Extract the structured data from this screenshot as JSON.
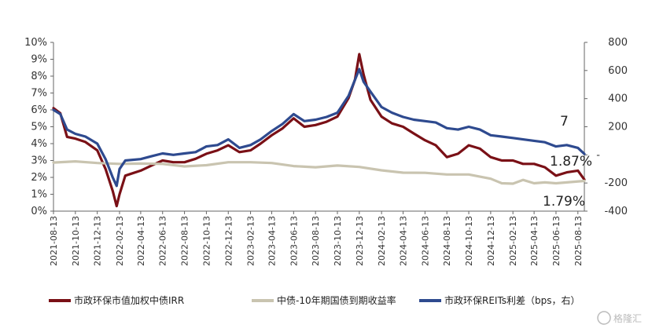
{
  "chart_data": {
    "type": "line",
    "title": "",
    "xlabel": "",
    "ylabel_left": "",
    "ylabel_right": "",
    "x_start": "2021-08-13",
    "x_end": "2025-08-31",
    "ylim_left": [
      0,
      10
    ],
    "ylim_right": [
      -400,
      800
    ],
    "y_ticks_left": [
      "0%",
      "1%",
      "2%",
      "3%",
      "4%",
      "5%",
      "6%",
      "7%",
      "8%",
      "9%",
      "10%"
    ],
    "y_ticks_right": [
      "-400",
      "-200",
      "-",
      "200",
      "400",
      "600",
      "800"
    ],
    "x_ticks": [
      "2021-08-13",
      "2021-10-13",
      "2021-12-13",
      "2022-02-13",
      "2022-04-13",
      "2022-06-13",
      "2022-08-13",
      "2022-10-13",
      "2022-12-13",
      "2023-02-13",
      "2023-04-13",
      "2023-06-13",
      "2023-08-13",
      "2023-10-13",
      "2023-12-13",
      "2024-02-13",
      "2024-04-13",
      "2024-06-13",
      "2024-08-13",
      "2024-10-13",
      "2024-12-13",
      "2025-02-13",
      "2025-04-13",
      "2025-06-13",
      "2025-08-13"
    ],
    "series": [
      {
        "name": "市政环保市值加权中债IRR",
        "axis": "left",
        "color": "#7a1016",
        "points": [
          [
            "2021-08-13",
            6.1
          ],
          [
            "2021-09-01",
            5.8
          ],
          [
            "2021-09-20",
            4.4
          ],
          [
            "2021-10-13",
            4.3
          ],
          [
            "2021-11-10",
            4.1
          ],
          [
            "2021-12-13",
            3.6
          ],
          [
            "2022-01-05",
            2.5
          ],
          [
            "2022-01-25",
            1.2
          ],
          [
            "2022-02-05",
            0.3
          ],
          [
            "2022-02-13",
            1.0
          ],
          [
            "2022-03-01",
            2.1
          ],
          [
            "2022-03-15",
            2.2
          ],
          [
            "2022-04-13",
            2.4
          ],
          [
            "2022-05-13",
            2.7
          ],
          [
            "2022-06-13",
            3.0
          ],
          [
            "2022-07-13",
            2.9
          ],
          [
            "2022-08-13",
            2.9
          ],
          [
            "2022-09-13",
            3.1
          ],
          [
            "2022-10-13",
            3.4
          ],
          [
            "2022-11-13",
            3.6
          ],
          [
            "2022-12-13",
            3.9
          ],
          [
            "2023-01-13",
            3.5
          ],
          [
            "2023-02-13",
            3.6
          ],
          [
            "2023-03-13",
            4.0
          ],
          [
            "2023-04-13",
            4.5
          ],
          [
            "2023-05-13",
            4.9
          ],
          [
            "2023-06-13",
            5.5
          ],
          [
            "2023-07-13",
            5.0
          ],
          [
            "2023-08-13",
            5.1
          ],
          [
            "2023-09-13",
            5.3
          ],
          [
            "2023-10-13",
            5.6
          ],
          [
            "2023-11-13",
            6.7
          ],
          [
            "2023-12-01",
            7.8
          ],
          [
            "2023-12-13",
            9.3
          ],
          [
            "2023-12-25",
            8.1
          ],
          [
            "2024-01-13",
            6.6
          ],
          [
            "2024-02-13",
            5.6
          ],
          [
            "2024-03-13",
            5.2
          ],
          [
            "2024-04-13",
            5.0
          ],
          [
            "2024-05-13",
            4.6
          ],
          [
            "2024-06-13",
            4.2
          ],
          [
            "2024-07-13",
            3.9
          ],
          [
            "2024-08-13",
            3.2
          ],
          [
            "2024-09-13",
            3.4
          ],
          [
            "2024-10-13",
            3.9
          ],
          [
            "2024-11-13",
            3.7
          ],
          [
            "2024-12-13",
            3.2
          ],
          [
            "2025-01-13",
            3.0
          ],
          [
            "2025-02-13",
            3.0
          ],
          [
            "2025-03-13",
            2.8
          ],
          [
            "2025-04-13",
            2.8
          ],
          [
            "2025-05-13",
            2.6
          ],
          [
            "2025-06-13",
            2.1
          ],
          [
            "2025-07-13",
            2.3
          ],
          [
            "2025-08-13",
            2.4
          ],
          [
            "2025-08-31",
            1.87
          ]
        ]
      },
      {
        "name": "中债-10年期国债到期收益率",
        "axis": "left",
        "color": "#c9c4b0",
        "points": [
          [
            "2021-08-13",
            2.88
          ],
          [
            "2021-10-13",
            2.95
          ],
          [
            "2021-12-13",
            2.85
          ],
          [
            "2022-02-13",
            2.8
          ],
          [
            "2022-04-13",
            2.82
          ],
          [
            "2022-06-13",
            2.8
          ],
          [
            "2022-08-13",
            2.65
          ],
          [
            "2022-10-13",
            2.72
          ],
          [
            "2022-12-13",
            2.9
          ],
          [
            "2023-02-13",
            2.9
          ],
          [
            "2023-04-13",
            2.85
          ],
          [
            "2023-06-13",
            2.67
          ],
          [
            "2023-08-13",
            2.6
          ],
          [
            "2023-10-13",
            2.7
          ],
          [
            "2023-12-13",
            2.62
          ],
          [
            "2024-02-13",
            2.42
          ],
          [
            "2024-04-13",
            2.28
          ],
          [
            "2024-06-13",
            2.27
          ],
          [
            "2024-08-13",
            2.17
          ],
          [
            "2024-10-13",
            2.17
          ],
          [
            "2024-12-13",
            1.92
          ],
          [
            "2025-01-13",
            1.65
          ],
          [
            "2025-02-13",
            1.63
          ],
          [
            "2025-03-13",
            1.85
          ],
          [
            "2025-04-13",
            1.65
          ],
          [
            "2025-05-13",
            1.7
          ],
          [
            "2025-06-13",
            1.65
          ],
          [
            "2025-07-13",
            1.7
          ],
          [
            "2025-08-31",
            1.79
          ]
        ]
      },
      {
        "name": "市政环保REITs利差（bps，右）",
        "axis": "right",
        "color": "#2e4a8f",
        "points": [
          [
            "2021-08-13",
            320
          ],
          [
            "2021-09-01",
            290
          ],
          [
            "2021-09-20",
            180
          ],
          [
            "2021-10-13",
            150
          ],
          [
            "2021-11-10",
            130
          ],
          [
            "2021-12-13",
            80
          ],
          [
            "2022-01-05",
            -30
          ],
          [
            "2022-01-25",
            -160
          ],
          [
            "2022-02-05",
            -220
          ],
          [
            "2022-02-13",
            -100
          ],
          [
            "2022-03-01",
            -40
          ],
          [
            "2022-04-13",
            -30
          ],
          [
            "2022-05-13",
            -10
          ],
          [
            "2022-06-13",
            10
          ],
          [
            "2022-07-13",
            0
          ],
          [
            "2022-08-13",
            10
          ],
          [
            "2022-09-13",
            20
          ],
          [
            "2022-10-13",
            60
          ],
          [
            "2022-11-13",
            70
          ],
          [
            "2022-12-13",
            110
          ],
          [
            "2023-01-13",
            50
          ],
          [
            "2023-02-13",
            70
          ],
          [
            "2023-03-13",
            110
          ],
          [
            "2023-04-13",
            170
          ],
          [
            "2023-05-13",
            220
          ],
          [
            "2023-06-13",
            290
          ],
          [
            "2023-07-13",
            240
          ],
          [
            "2023-08-13",
            250
          ],
          [
            "2023-09-13",
            270
          ],
          [
            "2023-10-13",
            300
          ],
          [
            "2023-11-13",
            420
          ],
          [
            "2023-12-13",
            610
          ],
          [
            "2023-12-25",
            520
          ],
          [
            "2024-01-13",
            450
          ],
          [
            "2024-02-13",
            340
          ],
          [
            "2024-03-13",
            300
          ],
          [
            "2024-04-13",
            270
          ],
          [
            "2024-05-13",
            250
          ],
          [
            "2024-06-13",
            240
          ],
          [
            "2024-07-13",
            230
          ],
          [
            "2024-08-13",
            190
          ],
          [
            "2024-09-13",
            180
          ],
          [
            "2024-10-13",
            200
          ],
          [
            "2024-11-13",
            180
          ],
          [
            "2024-12-13",
            140
          ],
          [
            "2025-01-13",
            130
          ],
          [
            "2025-02-13",
            120
          ],
          [
            "2025-03-13",
            110
          ],
          [
            "2025-04-13",
            100
          ],
          [
            "2025-05-13",
            90
          ],
          [
            "2025-06-13",
            60
          ],
          [
            "2025-07-13",
            70
          ],
          [
            "2025-08-13",
            50
          ],
          [
            "2025-08-31",
            7
          ]
        ]
      }
    ],
    "annotations": [
      {
        "text": "7",
        "series": "市政环保REITs利差（bps，右）"
      },
      {
        "text": "1.87%",
        "series": "市政环保市值加权中债IRR"
      },
      {
        "text": "1.79%",
        "series": "中债-10年期国债到期收益率"
      }
    ],
    "legend_position": "bottom",
    "grid": false
  },
  "watermark": "格隆汇"
}
